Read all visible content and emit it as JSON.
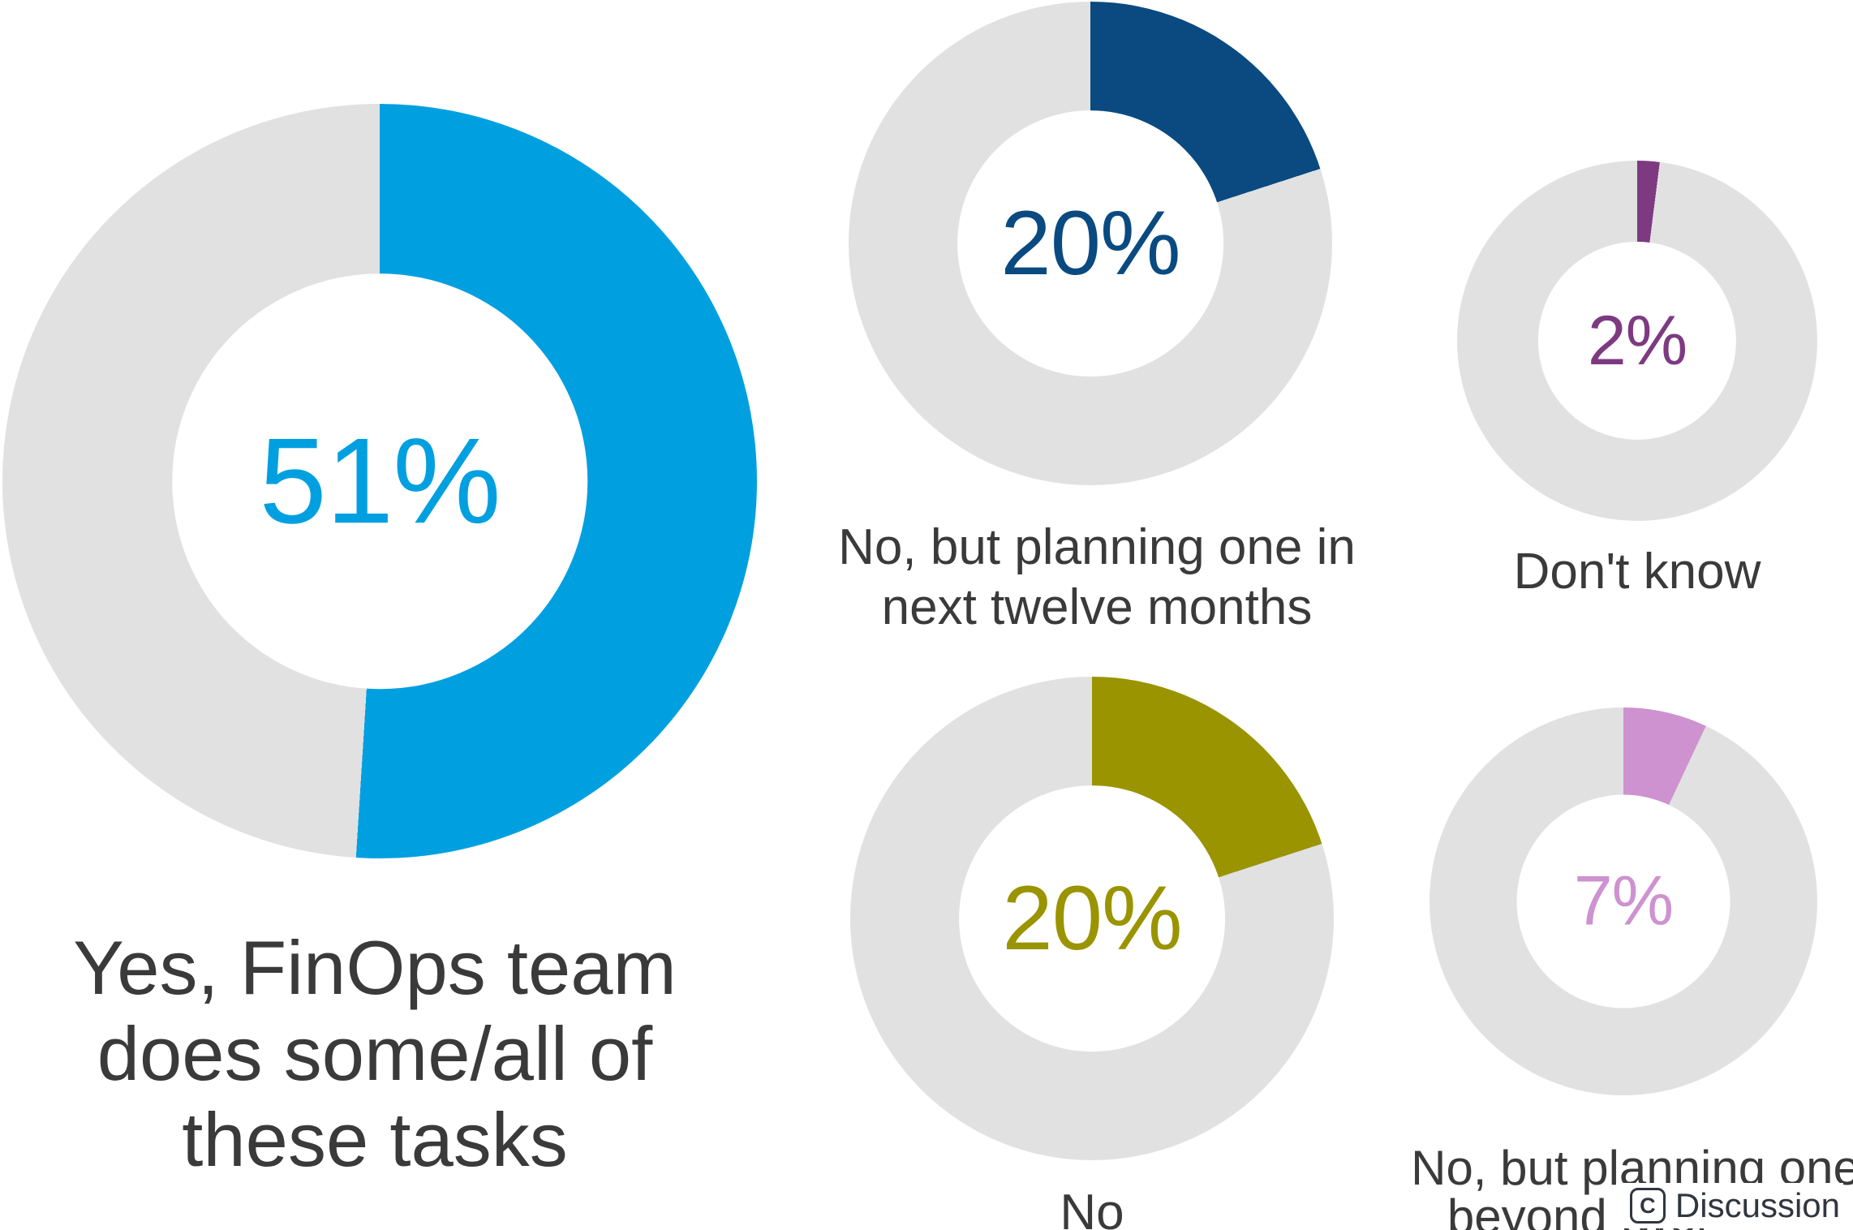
{
  "chart_data": {
    "type": "pie",
    "subtype": "donut-multiples",
    "unit": "%",
    "start_angle": "top",
    "direction": "clockwise",
    "track_color": "#E1E1E1",
    "label_color": "#3A3A3A",
    "charts": [
      {
        "id": "yes",
        "label": "Yes, FinOps team does some/all of these tasks",
        "label_lines": [
          "Yes, FinOps team",
          "does some/all of",
          "these tasks"
        ],
        "value": 51,
        "center_label": "51%",
        "color": "#00A0E0"
      },
      {
        "id": "no-planning-next-twelve",
        "label": "No, but planning one in next twelve months",
        "label_lines": [
          "No, but planning one in",
          "next twelve months"
        ],
        "value": 20,
        "center_label": "20%",
        "color": "#0A4A80"
      },
      {
        "id": "dont-know",
        "label": "Don't know",
        "label_lines": [
          "Don't know"
        ],
        "value": 2,
        "center_label": "2%",
        "color": "#7D3A81"
      },
      {
        "id": "no",
        "label": "No",
        "label_lines": [
          "No"
        ],
        "value": 20,
        "center_label": "20%",
        "color": "#9A9400"
      },
      {
        "id": "no-planning-beyond-twelve",
        "label": "No, but planning one beyond twel",
        "label_lines": [
          "No, but planning one",
          "beyond twel"
        ],
        "value": 7,
        "center_label": "7%",
        "color": "#CE92D0"
      }
    ]
  },
  "watermark": {
    "icon": "copyright-icon",
    "icon_glyph": "C",
    "label": "Discussion",
    "color": "#2F3640"
  }
}
